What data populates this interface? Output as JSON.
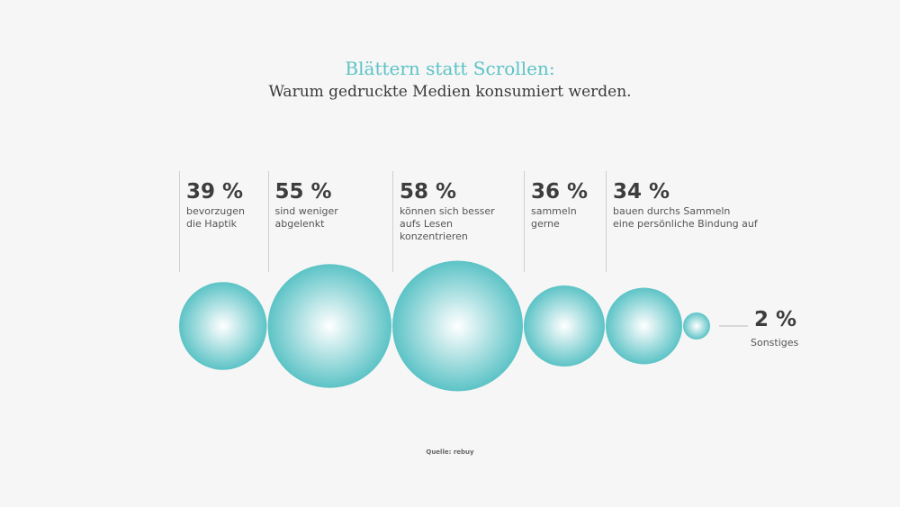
{
  "chart_data": {
    "type": "bubble",
    "title": "Blättern statt Scrollen:",
    "subtitle": "Warum gedruckte Medien konsumiert werden.",
    "unit": "%",
    "items": [
      {
        "value": 39,
        "label": "39 %",
        "desc": [
          "bevorzugen",
          "die Haptik"
        ]
      },
      {
        "value": 55,
        "label": "55 %",
        "desc": [
          "sind weniger",
          "abgelenkt"
        ]
      },
      {
        "value": 58,
        "label": "58 %",
        "desc": [
          "können sich besser",
          "aufs Lesen",
          "konzentrieren"
        ]
      },
      {
        "value": 36,
        "label": "36 %",
        "desc": [
          "sammeln",
          "gerne"
        ]
      },
      {
        "value": 34,
        "label": "34 %",
        "desc": [
          "bauen durchs Sammeln",
          "eine persönliche Bindung auf"
        ]
      },
      {
        "value": 2,
        "label": "2 %",
        "desc": [
          "Sonstiges"
        ]
      }
    ],
    "bubble_color": "#5cc3c6",
    "source": "Quelle: rebuy"
  }
}
